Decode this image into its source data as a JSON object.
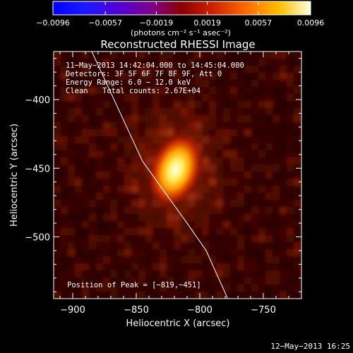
{
  "chart_data": {
    "type": "heatmap",
    "title": "Reconstructed RHESSI Image",
    "xlabel": "Heliocentric X (arcsec)",
    "ylabel": "Heliocentric Y (arcsec)",
    "xlim": [
      -915,
      -720
    ],
    "ylim": [
      -545,
      -365
    ],
    "x_ticks": [
      -900,
      -850,
      -800,
      -750
    ],
    "y_ticks": [
      -400,
      -450,
      -500
    ],
    "x_tick_labels": [
      "−900",
      "−850",
      "−800",
      "−750"
    ],
    "y_tick_labels": [
      "−400",
      "−450",
      "−500"
    ],
    "colorbar": {
      "range": [
        -0.0096,
        0.0096
      ],
      "ticks": [
        -0.0096,
        -0.0057,
        -0.0019,
        0.0019,
        0.0057,
        0.0096
      ],
      "tick_labels": [
        "−0.0096",
        "−0.0057",
        "−0.0019",
        "0.0019",
        "0.0057",
        "0.0096"
      ],
      "unit_label": "(photons cm⁻² s⁻¹ asec⁻²)"
    },
    "source_peak": {
      "x": -819,
      "y": -451,
      "sigma_x": 5,
      "sigma_y": 7,
      "value": 0.0096
    },
    "limb_line": {
      "x": [
        -885,
        -845,
        -810,
        -795,
        -778
      ],
      "y": [
        -365,
        -445,
        -490,
        -510,
        -545
      ]
    },
    "annotations": {
      "time_range": "11−May−2013 14:42:04.000 to 14:45:04.000",
      "detectors": "Detectors: 3F 5F 6F 7F 8F 9F, Att 0",
      "energy_range": "Energy Range: 6.0 − 12.0 keV",
      "clean_label": "Clean",
      "total_counts": "Total counts: 2.67E+04",
      "peak_position": "Position of Peak = [−819,−451]"
    },
    "footer_date": "12−May−2013 16:25"
  }
}
